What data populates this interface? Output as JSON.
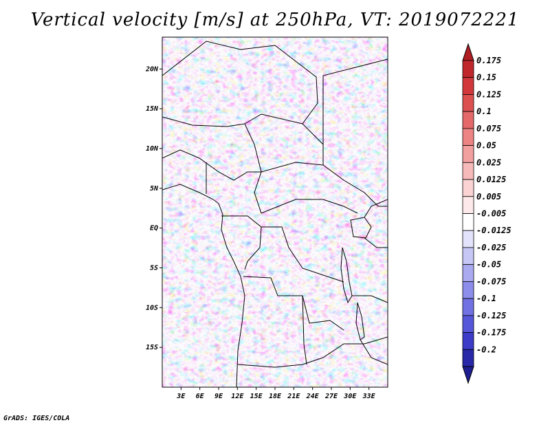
{
  "title": "Vertical velocity [m/s] at 250hPa, VT: 2019072221",
  "credit": "GrADS: IGES/COLA",
  "map": {
    "lon_range": [
      0,
      36
    ],
    "lat_range": [
      -20,
      24
    ],
    "lat_ticks": [
      {
        "lat": 20,
        "label": "20N"
      },
      {
        "lat": 15,
        "label": "15N"
      },
      {
        "lat": 10,
        "label": "10N"
      },
      {
        "lat": 5,
        "label": "5N"
      },
      {
        "lat": 0,
        "label": "EQ"
      },
      {
        "lat": -5,
        "label": "5S"
      },
      {
        "lat": -10,
        "label": "10S"
      },
      {
        "lat": -15,
        "label": "15S"
      }
    ],
    "lon_ticks": [
      {
        "lon": 3,
        "label": "3E"
      },
      {
        "lon": 6,
        "label": "6E"
      },
      {
        "lon": 9,
        "label": "9E"
      },
      {
        "lon": 12,
        "label": "12E"
      },
      {
        "lon": 15,
        "label": "15E"
      },
      {
        "lon": 18,
        "label": "18E"
      },
      {
        "lon": 21,
        "label": "21E"
      },
      {
        "lon": 24,
        "label": "24E"
      },
      {
        "lon": 27,
        "label": "27E"
      },
      {
        "lon": 30,
        "label": "30E"
      },
      {
        "lon": 33,
        "label": "33E"
      }
    ]
  },
  "colorbar": {
    "items": [
      {
        "label": "0.175",
        "color": "#c0272d"
      },
      {
        "label": "0.15",
        "color": "#d2383b"
      },
      {
        "label": "0.125",
        "color": "#dc5050"
      },
      {
        "label": "0.1",
        "color": "#e56969"
      },
      {
        "label": "0.075",
        "color": "#ec8484"
      },
      {
        "label": "0.05",
        "color": "#f29f9f"
      },
      {
        "label": "0.025",
        "color": "#f7baba"
      },
      {
        "label": "0.0125",
        "color": "#fbd3d3"
      },
      {
        "label": "0.005",
        "color": "#fde9e9"
      },
      {
        "label": "-0.005",
        "color": "#ffffff"
      },
      {
        "label": "-0.0125",
        "color": "#e3e3fb"
      },
      {
        "label": "-0.025",
        "color": "#c7c7f6"
      },
      {
        "label": "-0.05",
        "color": "#aaaaf1"
      },
      {
        "label": "-0.075",
        "color": "#8d8deb"
      },
      {
        "label": "-0.1",
        "color": "#7171e4"
      },
      {
        "label": "-0.125",
        "color": "#5656db"
      },
      {
        "label": "-0.175",
        "color": "#3c3cc8"
      },
      {
        "label": "-0.2",
        "color": "#2828a8"
      }
    ],
    "top_color": "#b01e24",
    "bottom_color": "#1e1e90"
  }
}
